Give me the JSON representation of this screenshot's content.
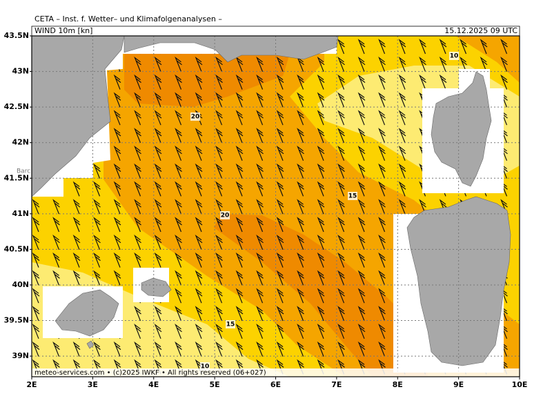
{
  "map": {
    "title": "CETA – Inst. f. Wetter– und Klimafolgenanalysen –",
    "variable": "WIND 10m [kn]",
    "valid_time": "15.12.2025 09 UTC",
    "footer": "meteo-services.com • (c)2025 IWKF • All rights reserved (06+027)",
    "place_label": "Barc",
    "xlim": [
      2,
      10
    ],
    "ylim": [
      38.71,
      43.5
    ],
    "xticks": [
      {
        "value": 2,
        "label": "2E"
      },
      {
        "value": 3,
        "label": "3E"
      },
      {
        "value": 4,
        "label": "4E"
      },
      {
        "value": 5,
        "label": "5E"
      },
      {
        "value": 6,
        "label": "6E"
      },
      {
        "value": 7,
        "label": "7E"
      },
      {
        "value": 8,
        "label": "8E"
      },
      {
        "value": 9,
        "label": "9E"
      },
      {
        "value": 10,
        "label": "10E"
      }
    ],
    "yticks": [
      {
        "value": 43.5,
        "label": "43.5N"
      },
      {
        "value": 43,
        "label": "43N"
      },
      {
        "value": 42.5,
        "label": "42.5N"
      },
      {
        "value": 42,
        "label": "42N"
      },
      {
        "value": 41.5,
        "label": "41.5N"
      },
      {
        "value": 41,
        "label": "41N"
      },
      {
        "value": 40.5,
        "label": "40.5N"
      },
      {
        "value": 40,
        "label": "40N"
      },
      {
        "value": 39.5,
        "label": "39.5N"
      },
      {
        "value": 39,
        "label": "39N"
      }
    ],
    "contour_labels": [
      10,
      20,
      15,
      20,
      15,
      10
    ]
  }
}
